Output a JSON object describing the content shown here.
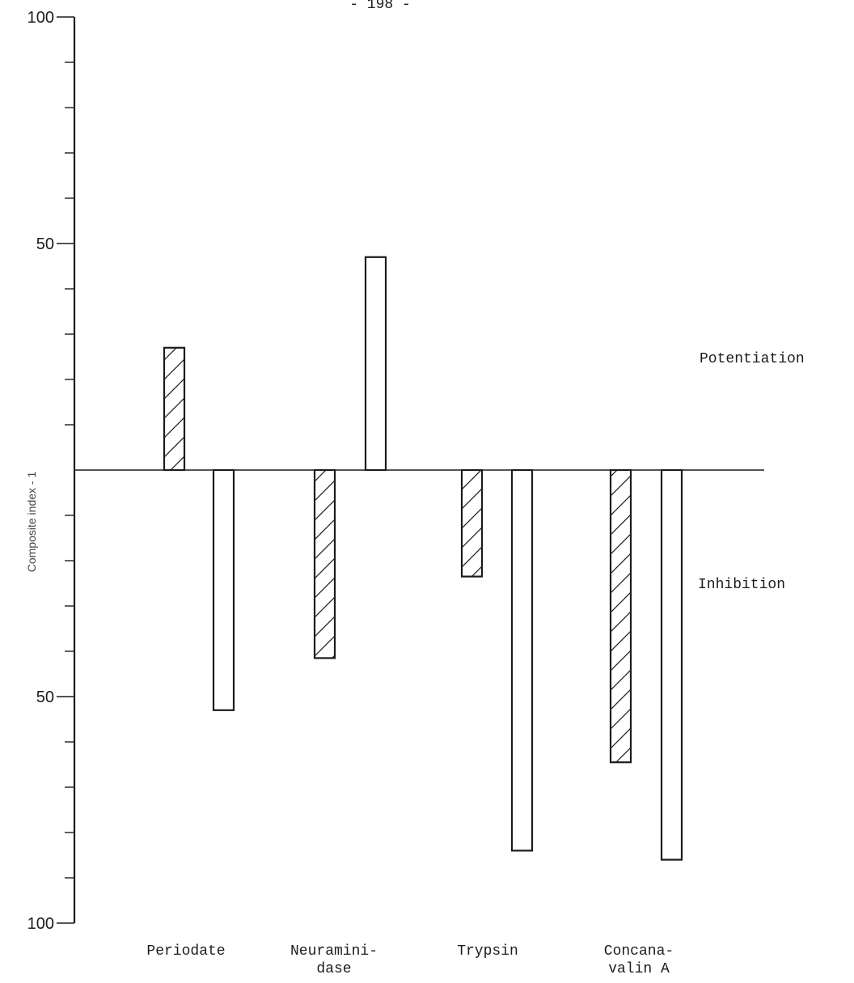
{
  "page_number": "- 198 -",
  "chart_data": {
    "type": "bar",
    "ylabel": "Composite index - 1",
    "ylim": [
      -100,
      100
    ],
    "y_tick_labels": [
      {
        "value": 100,
        "label": "100"
      },
      {
        "value": 50,
        "label": "50"
      },
      {
        "value": -50,
        "label": "50"
      },
      {
        "value": -100,
        "label": "100"
      }
    ],
    "categories": [
      {
        "lines": [
          "Periodate"
        ]
      },
      {
        "lines": [
          "Neuramini-",
          "dase"
        ]
      },
      {
        "lines": [
          "Trypsin"
        ]
      },
      {
        "lines": [
          "Concana-",
          "valin A"
        ]
      }
    ],
    "series": [
      {
        "pattern": "hatched",
        "values": [
          27,
          -41.5,
          -23.5,
          -64.5
        ]
      },
      {
        "pattern": "open",
        "values": [
          -53,
          47,
          -84,
          -86
        ]
      }
    ],
    "annotations": [
      {
        "text": "Potentiation",
        "side": "positive"
      },
      {
        "text": "Inhibition",
        "side": "negative"
      }
    ],
    "grid": false,
    "legend": "none"
  }
}
